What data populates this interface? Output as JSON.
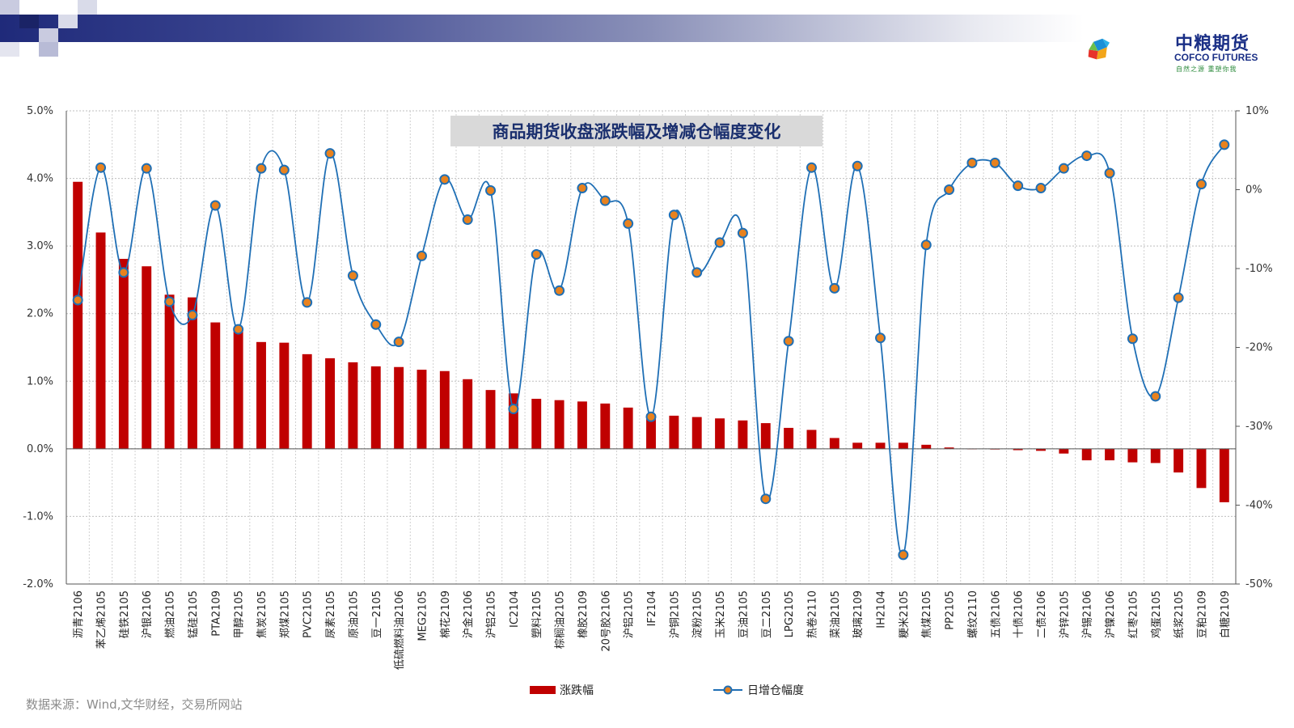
{
  "brand": {
    "name_cn": "中粮期货",
    "name_en": "COFCO FUTURES",
    "slogan": "自然之源 重塑你我"
  },
  "source_note": "数据来源：Wind,文华财经，交易所网站",
  "colors": {
    "bar": "#c00000",
    "line": "#1f6fb5",
    "marker_fill": "#e8821e",
    "title_bg": "#d9d9d9",
    "title_text": "#1a2f6e"
  },
  "chart_data": {
    "type": "bar",
    "title": "商品期货收盘涨跌幅及增减仓幅度变化",
    "categories": [
      "沥青2106",
      "苯乙烯2105",
      "硅铁2105",
      "沪银2106",
      "燃油2105",
      "锰硅2105",
      "PTA2109",
      "甲醇2105",
      "焦炭2105",
      "郑煤2105",
      "PVC2105",
      "尿素2105",
      "原油2105",
      "豆一2105",
      "低硫燃料油2106",
      "MEG2105",
      "棉花2109",
      "沪金2106",
      "沪铝2105",
      "IC2104",
      "塑料2105",
      "棕榈油2105",
      "橡胶2109",
      "20号胶2106",
      "沪铝2105",
      "IF2104",
      "沪铜2105",
      "淀粉2105",
      "玉米2105",
      "豆油2105",
      "豆二2105",
      "LPG2105",
      "热卷2110",
      "菜油2105",
      "玻璃2109",
      "IH2104",
      "粳米2105",
      "焦煤2105",
      "PP2105",
      "螺纹2110",
      "五债2106",
      "十债2106",
      "二债2106",
      "沪锌2105",
      "沪锡2106",
      "沪镍2106",
      "红枣2105",
      "鸡蛋2105",
      "纸浆2105",
      "豆粕2109",
      "白糖2109"
    ],
    "series": [
      {
        "name": "涨跌幅",
        "axis": "left",
        "values": [
          3.95,
          3.2,
          2.81,
          2.7,
          2.28,
          2.24,
          1.87,
          1.78,
          1.58,
          1.57,
          1.4,
          1.34,
          1.28,
          1.22,
          1.21,
          1.17,
          1.15,
          1.03,
          0.87,
          0.82,
          0.74,
          0.72,
          0.7,
          0.67,
          0.61,
          0.51,
          0.49,
          0.47,
          0.45,
          0.42,
          0.38,
          0.31,
          0.28,
          0.16,
          0.09,
          0.09,
          0.09,
          0.06,
          0.02,
          0.0,
          -0.01,
          -0.02,
          -0.03,
          -0.07,
          -0.17,
          -0.17,
          -0.2,
          -0.21,
          -0.35,
          -0.58,
          -0.79
        ]
      },
      {
        "name": "日增仓幅度",
        "axis": "right",
        "values": [
          -14.0,
          2.8,
          -10.5,
          2.7,
          -14.2,
          -15.9,
          -2.0,
          -17.7,
          2.7,
          2.5,
          -14.3,
          4.6,
          -10.9,
          -17.1,
          -19.3,
          -8.4,
          1.3,
          -3.8,
          -0.1,
          -27.8,
          -8.2,
          -12.8,
          0.2,
          -1.4,
          -4.3,
          -28.8,
          -3.2,
          -10.5,
          -6.7,
          -5.5,
          -39.2,
          -19.2,
          2.8,
          -12.5,
          3.0,
          -18.8,
          -46.3,
          -7.0,
          0.0,
          3.4,
          3.4,
          0.5,
          0.2,
          2.7,
          4.3,
          2.1,
          -18.9,
          -26.2,
          -13.7,
          0.7,
          5.7
        ]
      }
    ],
    "y_left": {
      "min": -2.0,
      "max": 5.0,
      "step": 1.0,
      "tick_labels": [
        "-2.0%",
        "-1.0%",
        "0.0%",
        "1.0%",
        "2.0%",
        "3.0%",
        "4.0%",
        "5.0%"
      ]
    },
    "y_right": {
      "min": -50,
      "max": 10,
      "step": 10,
      "tick_labels": [
        "-50%",
        "-40%",
        "-30%",
        "-20%",
        "-10%",
        "0%",
        "10%"
      ]
    },
    "grid": true,
    "legend_position": "bottom",
    "legend": [
      "涨跌幅",
      "日增仓幅度"
    ]
  }
}
